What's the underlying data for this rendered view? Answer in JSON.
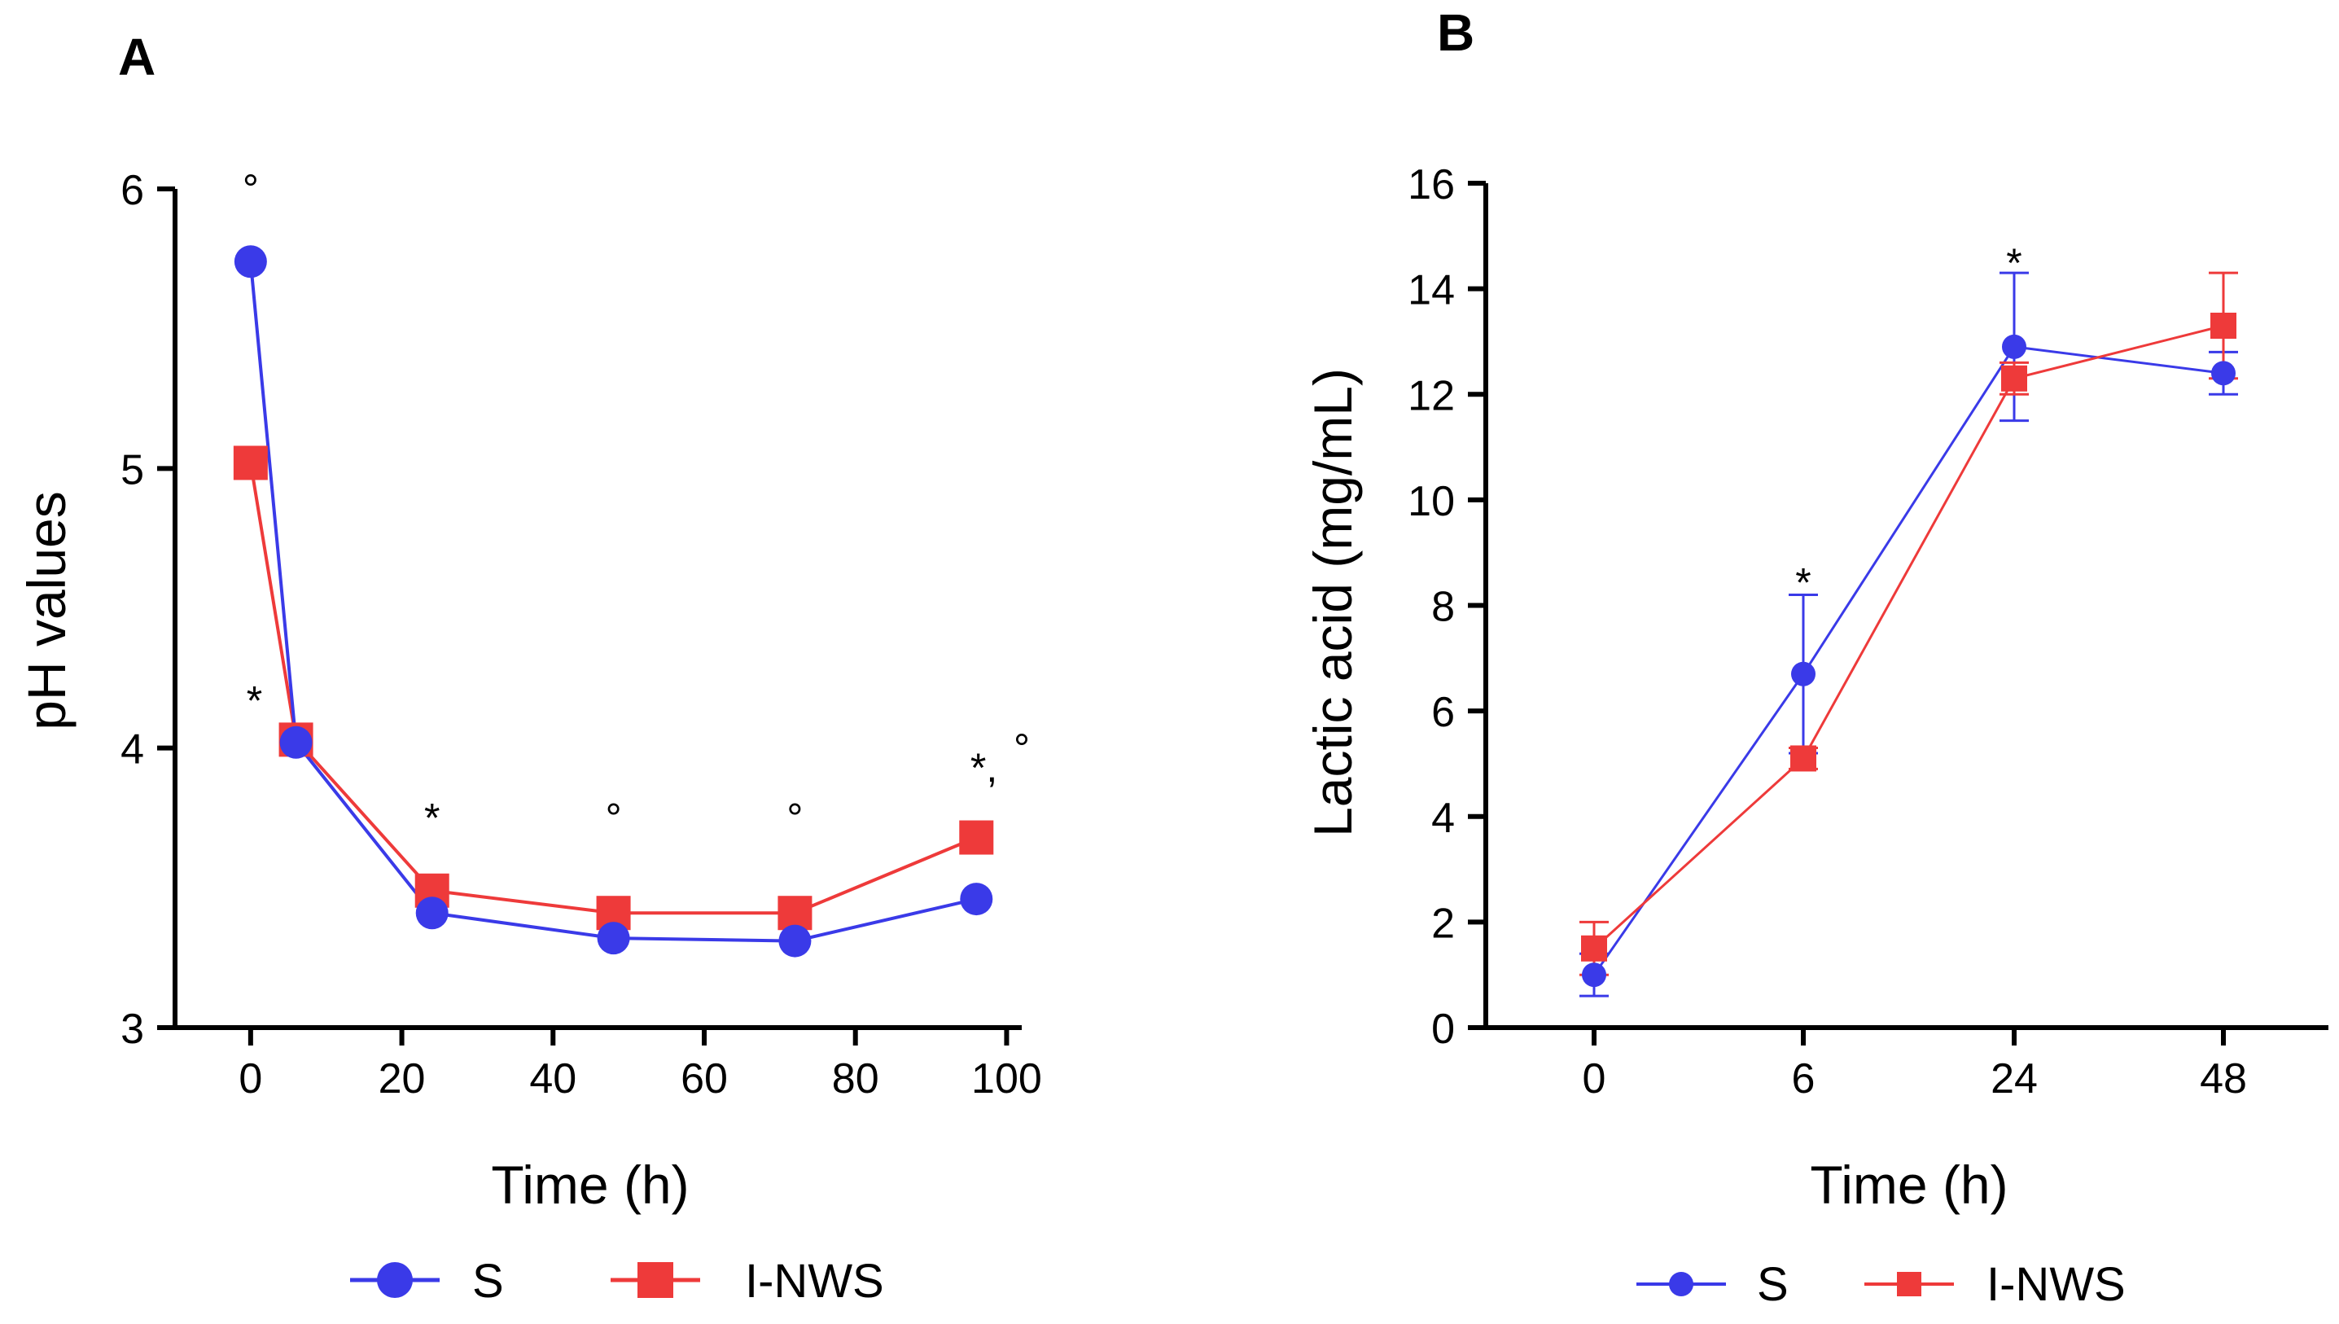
{
  "colors": {
    "S": "#3a3ae8",
    "I-NWS": "#ee3a3a"
  },
  "chart_data": [
    {
      "panel": "A",
      "type": "line",
      "xlabel": "Time (h)",
      "ylabel": "pH values",
      "xlim": [
        -10,
        102
      ],
      "ylim": [
        3,
        6
      ],
      "xticks": [
        0,
        20,
        40,
        60,
        80,
        100
      ],
      "yticks": [
        3,
        4,
        5,
        6
      ],
      "legend": "bottom",
      "series": [
        {
          "name": "S",
          "marker": "circle",
          "x": [
            0,
            6,
            24,
            48,
            72,
            96
          ],
          "y": [
            5.74,
            4.02,
            3.41,
            3.32,
            3.31,
            3.46
          ]
        },
        {
          "name": "I-NWS",
          "marker": "square",
          "x": [
            0,
            6,
            24,
            48,
            72,
            96
          ],
          "y": [
            5.02,
            4.03,
            3.49,
            3.41,
            3.41,
            3.68
          ]
        }
      ],
      "annotations": [
        {
          "text": "°",
          "x": 0,
          "y": 5.95
        },
        {
          "text": "*",
          "x": 0.5,
          "y": 4.12
        },
        {
          "text": "*",
          "x": 24,
          "y": 3.7
        },
        {
          "text": "°",
          "x": 48,
          "y": 3.7
        },
        {
          "text": "°",
          "x": 72,
          "y": 3.7
        },
        {
          "text": "*,",
          "x": 97,
          "y": 3.88
        },
        {
          "text": "°",
          "x": 102,
          "y": 3.95
        }
      ]
    },
    {
      "panel": "B",
      "type": "line",
      "xlabel": "Time (h)",
      "ylabel": "Lactic acid (mg/mL)",
      "categories": [
        "0",
        "6",
        "24",
        "48"
      ],
      "ylim": [
        0,
        16
      ],
      "yticks": [
        0,
        2,
        4,
        6,
        8,
        10,
        12,
        14,
        16
      ],
      "legend": "bottom",
      "series": [
        {
          "name": "S",
          "marker": "circle",
          "values": [
            1.0,
            6.7,
            12.9,
            12.4
          ],
          "errors": [
            0.4,
            1.5,
            1.4,
            0.4
          ]
        },
        {
          "name": "I-NWS",
          "marker": "square",
          "values": [
            1.5,
            5.1,
            12.3,
            13.3
          ],
          "errors": [
            0.5,
            0.2,
            0.3,
            1.0
          ]
        }
      ],
      "annotations": [
        {
          "text": "*",
          "category": 1,
          "y": 8.45
        },
        {
          "text": "*",
          "category": 2,
          "y": 14.5
        }
      ]
    }
  ]
}
